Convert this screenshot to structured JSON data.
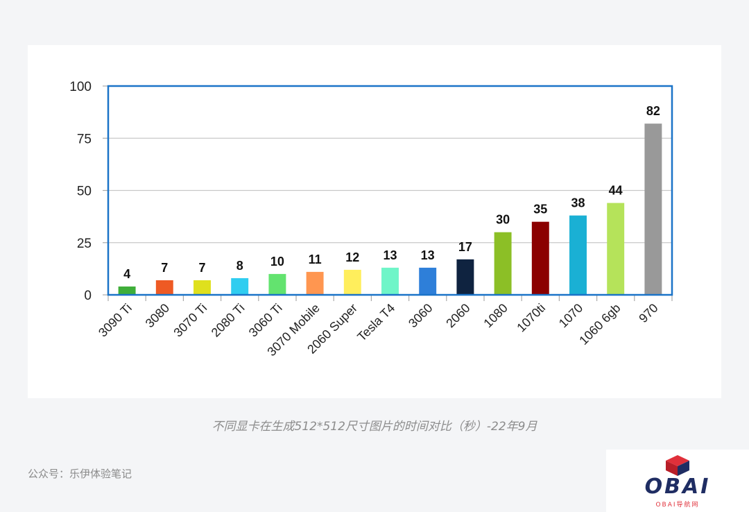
{
  "chart_data": {
    "type": "bar",
    "categories": [
      "3090 Ti",
      "3080",
      "3070 Ti",
      "2080 Ti",
      "3060 Ti",
      "3070 Mobile",
      "2060 Super",
      "Tesla T4",
      "3060",
      "2060",
      "1080",
      "1070ti",
      "1070",
      "1060 6gb",
      "970"
    ],
    "values": [
      4,
      7,
      7,
      8,
      10,
      11,
      12,
      13,
      13,
      17,
      30,
      35,
      38,
      44,
      82
    ],
    "data_labels": [
      "4",
      "7",
      "7",
      "8",
      "10",
      "11",
      "12",
      "13",
      "13",
      "17",
      "30",
      "35",
      "38",
      "44",
      "82"
    ],
    "bar_colors": [
      "#3fae3a",
      "#ee5a24",
      "#dfe01d",
      "#2fcdf0",
      "#63e36f",
      "#ff9650",
      "#ffee5c",
      "#6ff5c8",
      "#2e7fd9",
      "#0f2340",
      "#8cbf26",
      "#8b0000",
      "#1ab0d4",
      "#b5e35a",
      "#999999"
    ],
    "ylim": [
      0,
      100
    ],
    "yticks": [
      "0",
      "25",
      "50",
      "75",
      "100"
    ],
    "grid": true,
    "frame_color": "#1a73c8",
    "title": "",
    "xlabel": "",
    "ylabel": ""
  },
  "caption": "不同显卡在生成512*512尺寸图片的时间对比（秒）-22年9月",
  "account": "公众号：乐伊体验笔记",
  "logo": {
    "text": "OBAI",
    "subtext": "OBAI导航网",
    "color": "#1f2d63",
    "accent": "#e0303a"
  }
}
